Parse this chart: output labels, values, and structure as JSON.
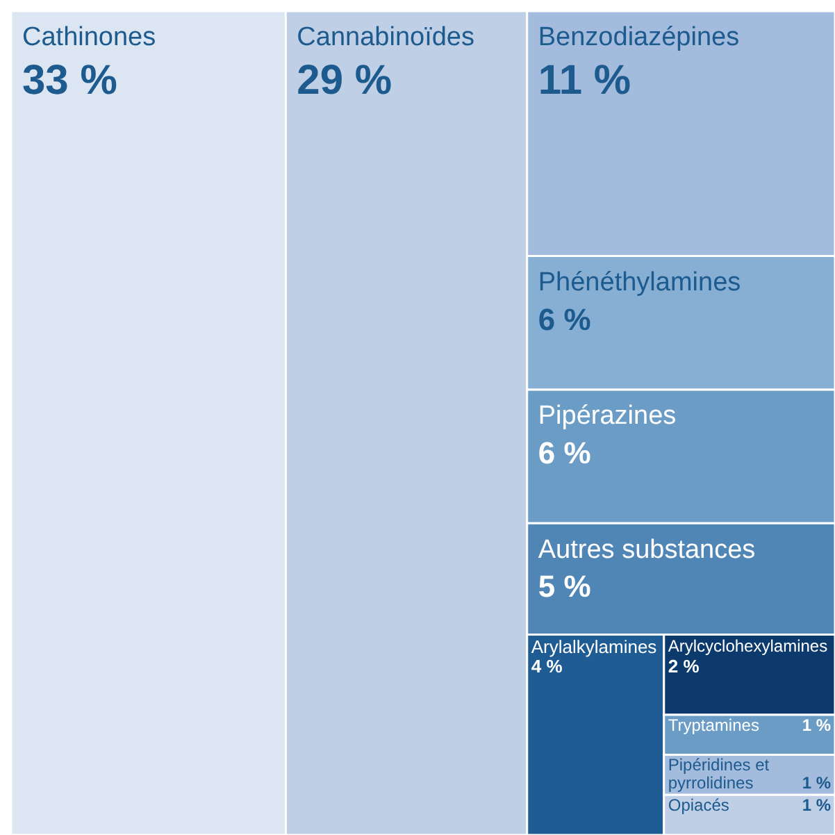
{
  "chart_data": {
    "type": "other",
    "categories": [
      "Cathinones",
      "Cannabinoïdes",
      "Benzodiazépines",
      "Phénéthylamines",
      "Pipérazines",
      "Autres substances",
      "Arylalkylamines",
      "Arylcyclohexylamines",
      "Tryptamines",
      "Pipéridines et pyrrolidines",
      "Opiacés"
    ],
    "values": [
      33,
      29,
      11,
      6,
      6,
      5,
      4,
      2,
      1,
      1,
      1
    ],
    "value_labels": [
      "33 %",
      "29 %",
      "11 %",
      "6 %",
      "6 %",
      "5 %",
      "4 %",
      "2 %",
      "1 %",
      "1 %",
      "1 %"
    ],
    "colors": [
      "#dce6f3",
      "#bfcfe5",
      "#a3bbdc",
      "#87aed3",
      "#6b9cc6",
      "#4f86b6",
      "#1f5c93",
      "#0d3a6c",
      "#6b9cc6",
      "#a3bbdc",
      "#bfcfe5"
    ]
  }
}
